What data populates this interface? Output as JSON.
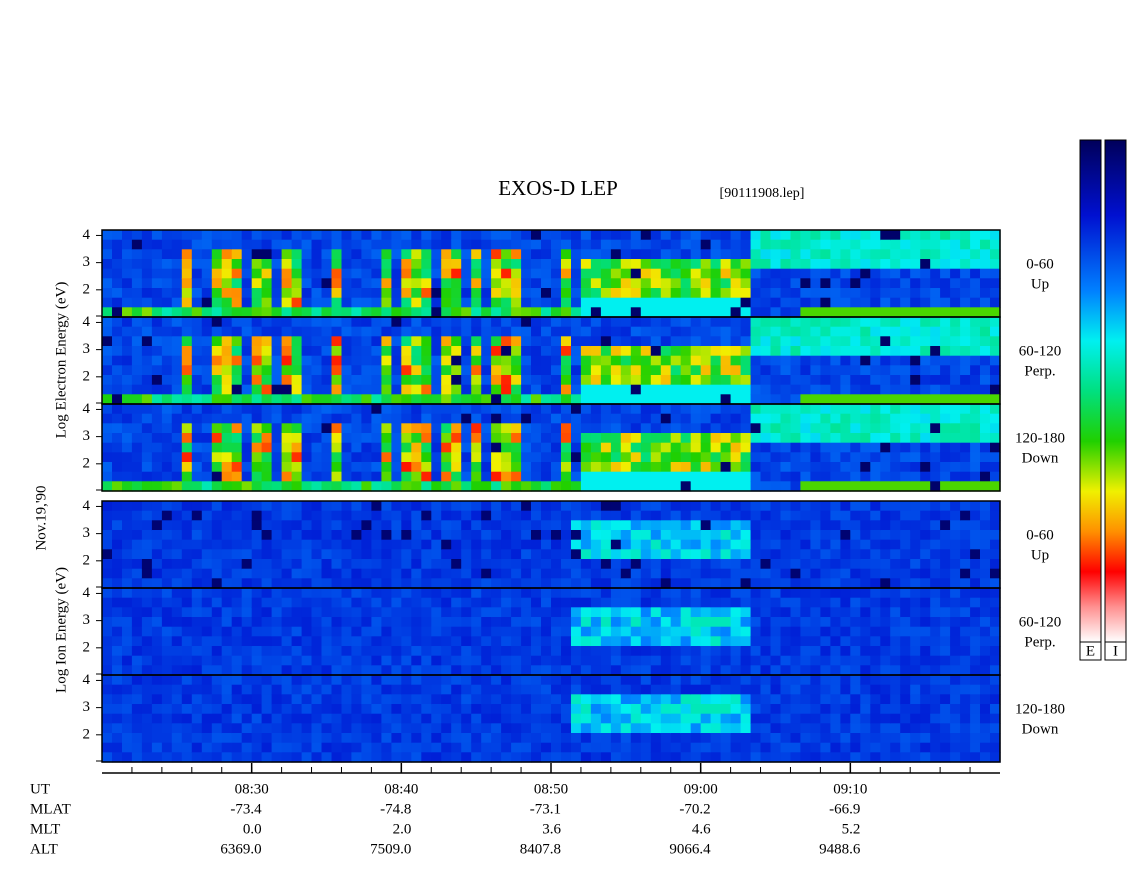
{
  "chart_data": {
    "type": "spectrogram",
    "title": "EXOS-D LEP",
    "subtitle": "[90111908.lep]",
    "date_label": "Nov.19,'90",
    "xlim": [
      500,
      560
    ],
    "xticks": [
      {
        "value": 510,
        "label": "08:30"
      },
      {
        "value": 520,
        "label": "08:40"
      },
      {
        "value": 530,
        "label": "08:50"
      },
      {
        "value": 540,
        "label": "09:00"
      },
      {
        "value": 550,
        "label": "09:10"
      }
    ],
    "ylim": [
      1,
      4.2
    ],
    "yticks": [
      2,
      3,
      4
    ],
    "groups": [
      {
        "name": "Log Electron Energy (eV)",
        "panels": [
          [
            "0-60",
            "Up"
          ],
          [
            "60-120",
            "Perp."
          ],
          [
            "120-180",
            "Down"
          ]
        ]
      },
      {
        "name": "Log Ion Energy (eV)",
        "panels": [
          [
            "0-60",
            "Up"
          ],
          [
            "60-120",
            "Perp."
          ],
          [
            "120-180",
            "Down"
          ]
        ]
      }
    ],
    "colorbars": [
      "E",
      "I"
    ],
    "orbit_rows": [
      {
        "name": "UT"
      },
      {
        "name": "MLAT",
        "values": [
          "-73.4",
          "-74.8",
          "-73.1",
          "-70.2",
          "-66.9"
        ]
      },
      {
        "name": "MLT",
        "values": [
          "0.0",
          "2.0",
          "3.6",
          "4.6",
          "5.2"
        ]
      },
      {
        "name": "ALT",
        "values": [
          "6369.0",
          "7509.0",
          "8407.8",
          "9066.4",
          "9488.6"
        ]
      }
    ]
  }
}
